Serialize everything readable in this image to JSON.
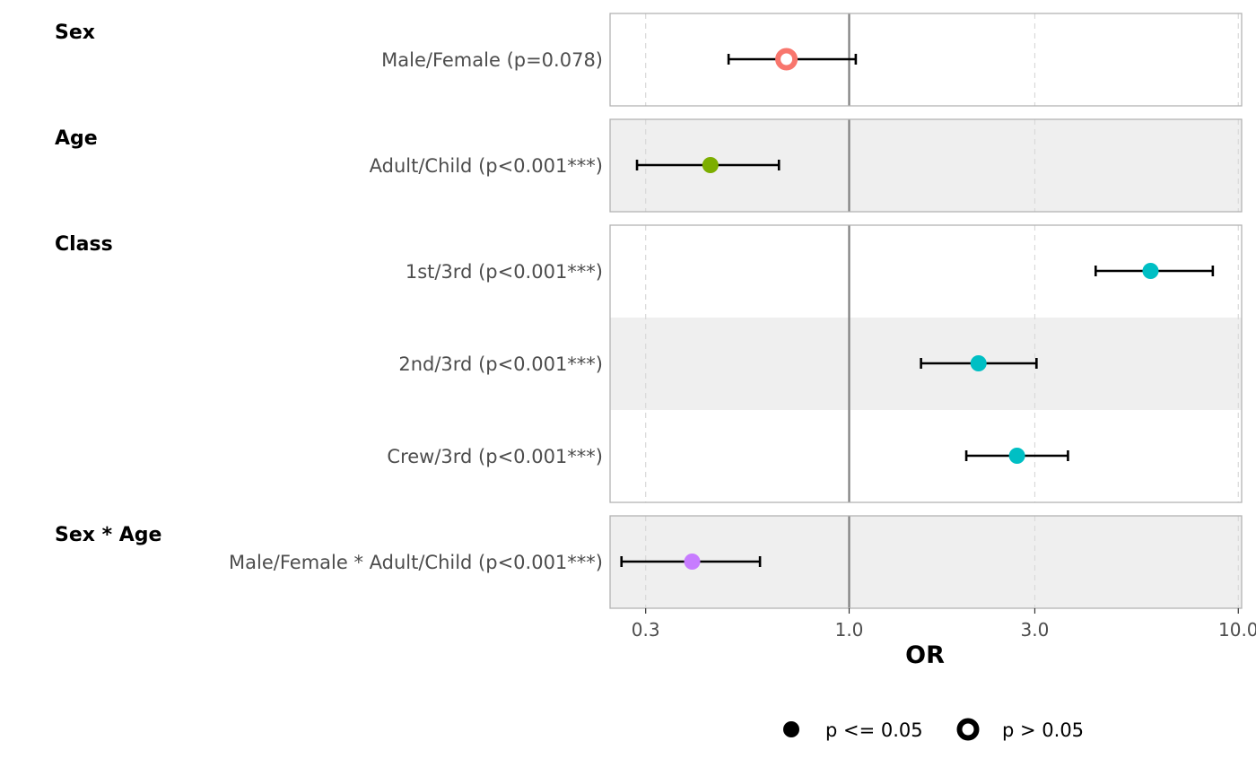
{
  "chart_data": {
    "type": "forest",
    "xlabel": "OR",
    "x_scale": "log10",
    "xlim": [
      0.243,
      10.2
    ],
    "x_ticks": [
      {
        "value": 0.3,
        "label": "0.3"
      },
      {
        "value": 1.0,
        "label": "1.0"
      },
      {
        "value": 3.0,
        "label": "3.0"
      },
      {
        "value": 10.0,
        "label": "10.0"
      }
    ],
    "reference_line": 1.0,
    "panels": [
      {
        "group": "Sex",
        "rows": [
          {
            "label": "Male/Female (p=0.078)",
            "estimate": 0.69,
            "lower": 0.49,
            "upper": 1.04,
            "significant": false,
            "color": "#F8766D",
            "shaded": false
          }
        ]
      },
      {
        "group": "Age",
        "rows": [
          {
            "label": "Adult/Child (p<0.001***)",
            "estimate": 0.44,
            "lower": 0.285,
            "upper": 0.66,
            "significant": true,
            "color": "#7CAE00",
            "shaded": true
          }
        ]
      },
      {
        "group": "Class",
        "rows": [
          {
            "label": "1st/3rd (p<0.001***)",
            "estimate": 5.95,
            "lower": 4.3,
            "upper": 8.6,
            "significant": true,
            "color": "#00BFC4",
            "shaded": false
          },
          {
            "label": "2nd/3rd (p<0.001***)",
            "estimate": 2.15,
            "lower": 1.53,
            "upper": 3.03,
            "significant": true,
            "color": "#00BFC4",
            "shaded": true
          },
          {
            "label": "Crew/3rd (p<0.001***)",
            "estimate": 2.7,
            "lower": 2.0,
            "upper": 3.65,
            "significant": true,
            "color": "#00BFC4",
            "shaded": false
          }
        ]
      },
      {
        "group": "Sex * Age",
        "rows": [
          {
            "label": "Male/Female * Adult/Child (p<0.001***)",
            "estimate": 0.395,
            "lower": 0.26,
            "upper": 0.59,
            "significant": true,
            "color": "#C77CFF",
            "shaded": true
          }
        ]
      }
    ],
    "legend": {
      "placement": "bottom",
      "items": [
        {
          "label": "p <= 0.05",
          "marker": "filled-circle"
        },
        {
          "label": "p > 0.05",
          "marker": "open-circle"
        }
      ]
    }
  }
}
